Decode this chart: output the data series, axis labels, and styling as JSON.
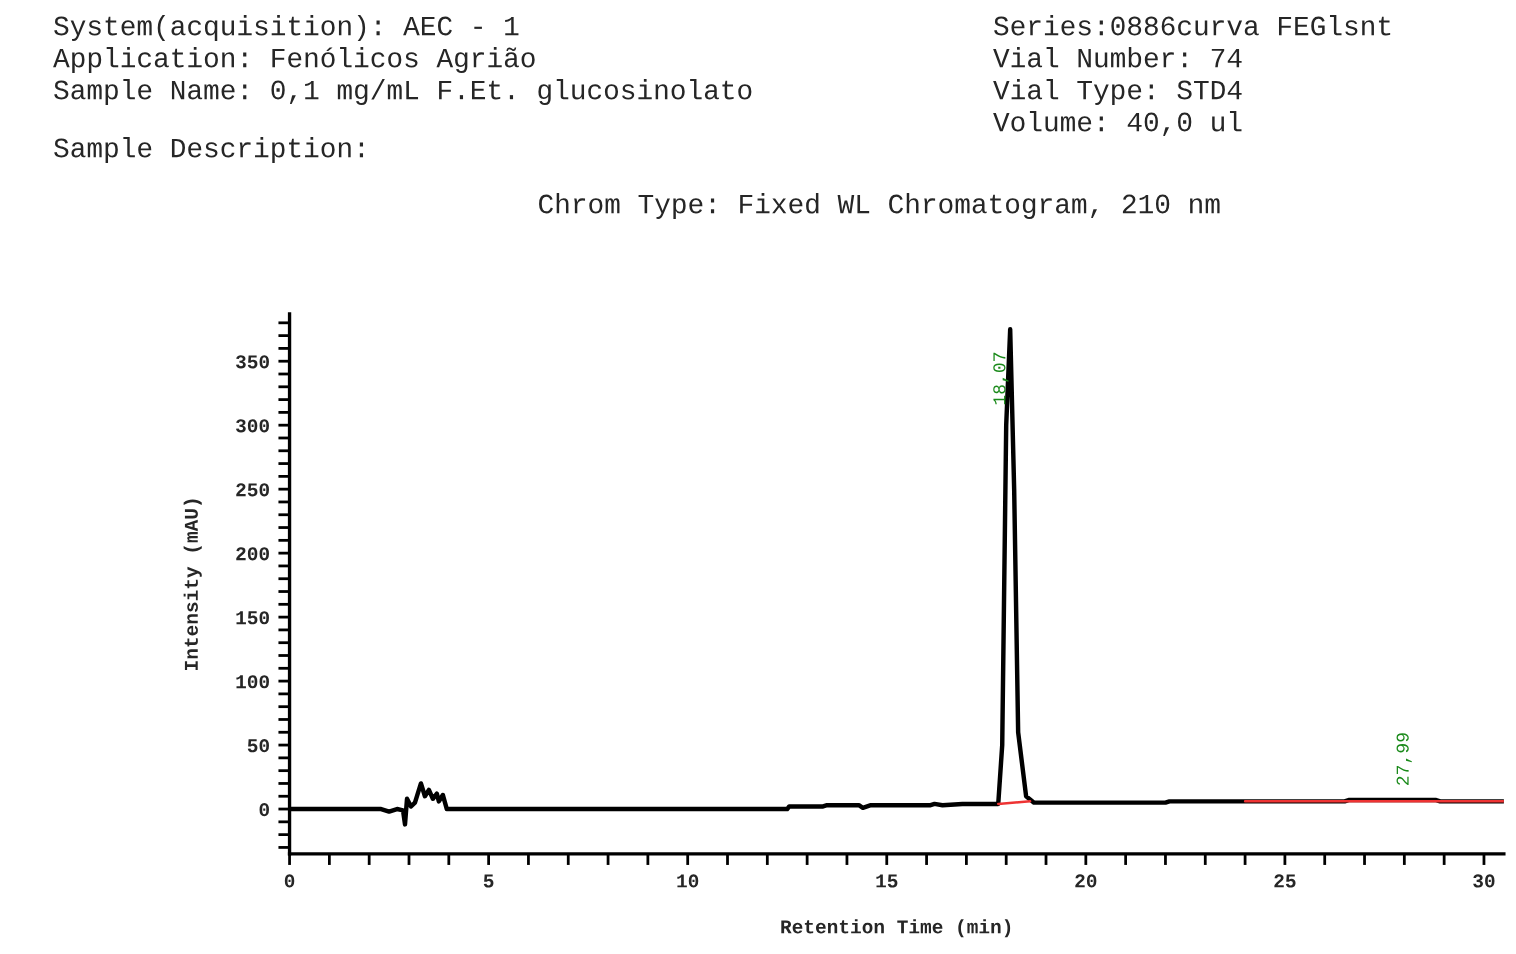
{
  "chart_data": {
    "type": "line",
    "title": "Chrom Type: Fixed WL Chromatogram, 210 nm",
    "xlabel": "Retention Time (min)",
    "ylabel": "Intensity (mAU)",
    "annotations": [
      "System(acquisition): AEC - 1",
      "Application: Fenólicos Agrião",
      "Sample Name: 0,1 mg/mL F.Et. glucosinolato",
      "Sample Description:",
      "Series:0886curva FEGlsnt",
      "Vial Number: 74",
      "Vial Type: STD4",
      "Volume: 40,0 ul",
      {
        "text": "18,07",
        "x": 18.07,
        "y": 375
      },
      {
        "text": "27,99",
        "x": 27.99,
        "y": 7
      }
    ],
    "series": [
      {
        "color": "#000000",
        "x": [
          0,
          2.3,
          2.5,
          2.7,
          2.85,
          2.9,
          2.95,
          3.05,
          3.15,
          3.3,
          3.4,
          3.5,
          3.6,
          3.7,
          3.75,
          3.85,
          3.95,
          12.5,
          12.55,
          13.4,
          13.5,
          14.3,
          14.4,
          14.6,
          16.1,
          16.2,
          16.4,
          16.9,
          17.8,
          17.9,
          18.0,
          18.1,
          18.2,
          18.3,
          18.5,
          18.7,
          22,
          22.1,
          24,
          26.5,
          26.6,
          28.8,
          28.9,
          30.5
        ],
        "values": [
          0,
          0,
          -2,
          0,
          -1,
          -12,
          8,
          2,
          5,
          20,
          10,
          15,
          8,
          12,
          6,
          11,
          0,
          0,
          2,
          2,
          3,
          3,
          1,
          3,
          3,
          4,
          3,
          4,
          4,
          50,
          300,
          375,
          250,
          60,
          10,
          5,
          5,
          6,
          6,
          6,
          7,
          7,
          6,
          6
        ]
      },
      {
        "color": "#ee3333",
        "x": [
          17.8,
          18.6,
          21,
          24,
          30.5
        ],
        "values": [
          4,
          6,
          null,
          6,
          6
        ]
      }
    ],
    "xlim": [
      0,
      30.5
    ],
    "xticks": [
      0,
      {
        "value": 1,
        "label": null
      },
      {
        "value": 2,
        "label": null
      },
      {
        "value": 3,
        "label": null
      },
      {
        "value": 4,
        "label": null
      },
      5,
      {
        "value": 6,
        "label": null
      },
      {
        "value": 7,
        "label": null
      },
      {
        "value": 8,
        "label": null
      },
      {
        "value": 9,
        "label": null
      },
      10,
      {
        "value": 11,
        "label": null
      },
      {
        "value": 12,
        "label": null
      },
      {
        "value": 13,
        "label": null
      },
      {
        "value": 14,
        "label": null
      },
      15,
      {
        "value": 16,
        "label": null
      },
      {
        "value": 17,
        "label": null
      },
      {
        "value": 18,
        "label": null
      },
      {
        "value": 19,
        "label": null
      },
      20,
      {
        "value": 21,
        "label": null
      },
      {
        "value": 22,
        "label": null
      },
      {
        "value": 23,
        "label": null
      },
      {
        "value": 24,
        "label": null
      },
      25,
      {
        "value": 26,
        "label": null
      },
      {
        "value": 27,
        "label": null
      },
      {
        "value": 28,
        "label": null
      },
      {
        "value": 29,
        "label": null
      },
      30
    ],
    "ylim": [
      -35,
      387
    ],
    "yticks": [
      {
        "value": -30,
        "label": null
      },
      {
        "value": -20,
        "label": null
      },
      {
        "value": -10,
        "label": null
      },
      0,
      {
        "value": 10,
        "label": null
      },
      {
        "value": 20,
        "label": null
      },
      {
        "value": 30,
        "label": null
      },
      {
        "value": 40,
        "label": null
      },
      50,
      {
        "value": 60,
        "label": null
      },
      {
        "value": 70,
        "label": null
      },
      {
        "value": 80,
        "label": null
      },
      {
        "value": 90,
        "label": null
      },
      100,
      {
        "value": 110,
        "label": null
      },
      {
        "value": 120,
        "label": null
      },
      {
        "value": 130,
        "label": null
      },
      {
        "value": 140,
        "label": null
      },
      150,
      {
        "value": 160,
        "label": null
      },
      {
        "value": 170,
        "label": null
      },
      {
        "value": 180,
        "label": null
      },
      {
        "value": 190,
        "label": null
      },
      200,
      {
        "value": 210,
        "label": null
      },
      {
        "value": 220,
        "label": null
      },
      {
        "value": 230,
        "label": null
      },
      {
        "value": 240,
        "label": null
      },
      250,
      {
        "value": 260,
        "label": null
      },
      {
        "value": 270,
        "label": null
      },
      {
        "value": 280,
        "label": null
      },
      {
        "value": 290,
        "label": null
      },
      300,
      {
        "value": 310,
        "label": null
      },
      {
        "value": 320,
        "label": null
      },
      {
        "value": 330,
        "label": null
      },
      {
        "value": 340,
        "label": null
      },
      350,
      {
        "value": 360,
        "label": null
      },
      {
        "value": 370,
        "label": null
      },
      {
        "value": 380,
        "label": null
      }
    ],
    "grid": false,
    "legend": false,
    "marker": "none",
    "line_style": "solid"
  }
}
